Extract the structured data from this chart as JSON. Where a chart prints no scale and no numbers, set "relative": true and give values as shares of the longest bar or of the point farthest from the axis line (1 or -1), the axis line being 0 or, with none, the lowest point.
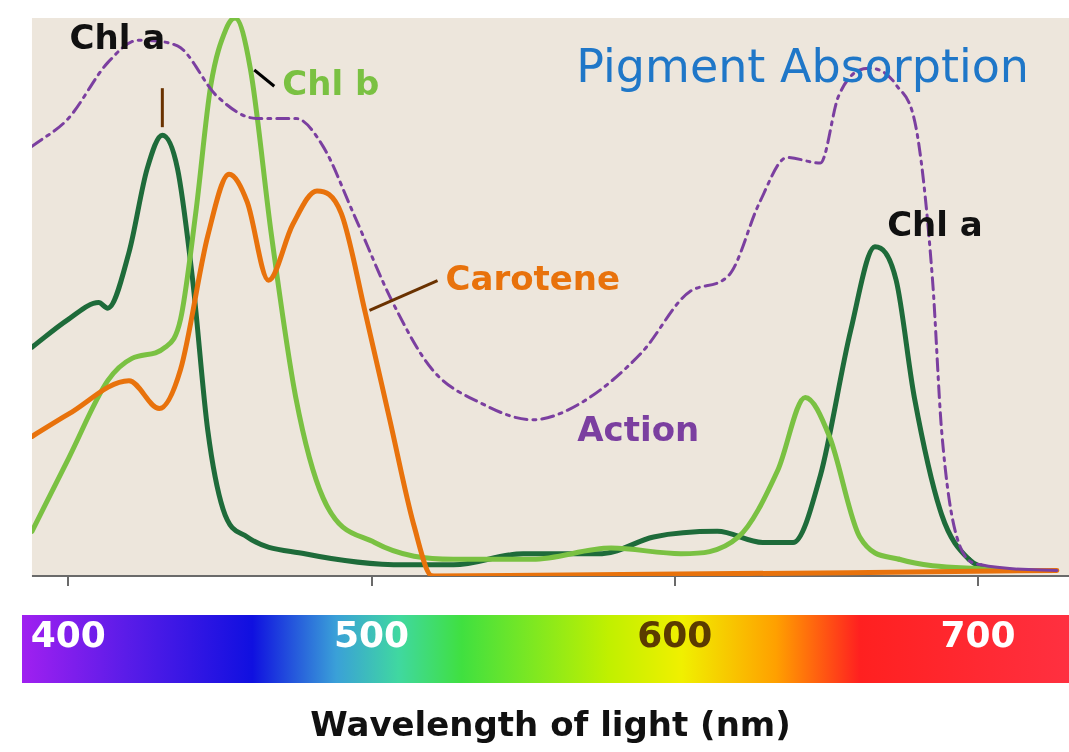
{
  "chart_data": {
    "type": "line",
    "title": "Pigment Absorption",
    "xlabel": "Wavelength of light (nm)",
    "relative": true,
    "xlim": [
      388,
      730
    ],
    "xticks": [
      400,
      500,
      600,
      700
    ],
    "grid": false,
    "legend": false,
    "marker": "none",
    "annotations": [
      {
        "text": "Chl $_{}$a",
        "x": 666,
        "y": 0.59
      }
    ],
    "series": [
      {
        "name": "Chl a",
        "color": "#1e6b3a",
        "line_style": "solid",
        "x": [
          388,
          400,
          410,
          413,
          420,
          426,
          431,
          436,
          441,
          446,
          451,
          459,
          478,
          511,
          527,
          550,
          576,
          593,
          614,
          629,
          639,
          648,
          658,
          666,
          673,
          679,
          688,
          697,
          707
        ],
        "values": [
          0.41,
          0.46,
          0.49,
          0.48,
          0.58,
          0.73,
          0.79,
          0.73,
          0.53,
          0.26,
          0.12,
          0.07,
          0.04,
          0.02,
          0.02,
          0.04,
          0.04,
          0.07,
          0.08,
          0.06,
          0.06,
          0.18,
          0.44,
          0.59,
          0.53,
          0.32,
          0.11,
          0.03,
          0.01
        ]
      },
      {
        "name": "Chl b",
        "color": "#7ac142",
        "line_style": "solid",
        "x": [
          388,
          400,
          413,
          421,
          432,
          437,
          442,
          447,
          452,
          455,
          460,
          467,
          475,
          484,
          501,
          527,
          553,
          579,
          602,
          621,
          634,
          643,
          651,
          661,
          674,
          707
        ],
        "values": [
          0.08,
          0.21,
          0.35,
          0.39,
          0.41,
          0.46,
          0.65,
          0.88,
          0.98,
          1,
          0.91,
          0.61,
          0.32,
          0.14,
          0.06,
          0.03,
          0.03,
          0.05,
          0.04,
          0.07,
          0.19,
          0.32,
          0.25,
          0.07,
          0.03,
          0.01
        ]
      },
      {
        "name": "Carotene",
        "color": "#e8720c",
        "line_style": "solid",
        "x": [
          388,
          400,
          420,
          430,
          437,
          446,
          453,
          459,
          466,
          474,
          482,
          490,
          498,
          506,
          514,
          520,
          726
        ],
        "values": [
          0.25,
          0.29,
          0.35,
          0.3,
          0.37,
          0.61,
          0.72,
          0.67,
          0.53,
          0.63,
          0.69,
          0.65,
          0.47,
          0.28,
          0.09,
          0,
          0.01
        ]
      },
      {
        "name": "Action",
        "color": "#7b3fa0",
        "line_style": "dashed",
        "x": [
          388,
          400,
          413,
          423,
          436,
          449,
          462,
          475,
          484,
          494,
          507,
          520,
          536,
          553,
          569,
          589,
          605,
          618,
          628,
          637,
          648,
          654,
          664,
          673,
          680,
          685,
          688,
          693,
          701,
          726
        ],
        "values": [
          0.77,
          0.82,
          0.92,
          0.96,
          0.95,
          0.86,
          0.82,
          0.82,
          0.77,
          0.65,
          0.49,
          0.37,
          0.31,
          0.28,
          0.31,
          0.4,
          0.51,
          0.54,
          0.67,
          0.75,
          0.74,
          0.86,
          0.91,
          0.88,
          0.79,
          0.53,
          0.26,
          0.07,
          0.02,
          0.01
        ]
      }
    ]
  }
}
